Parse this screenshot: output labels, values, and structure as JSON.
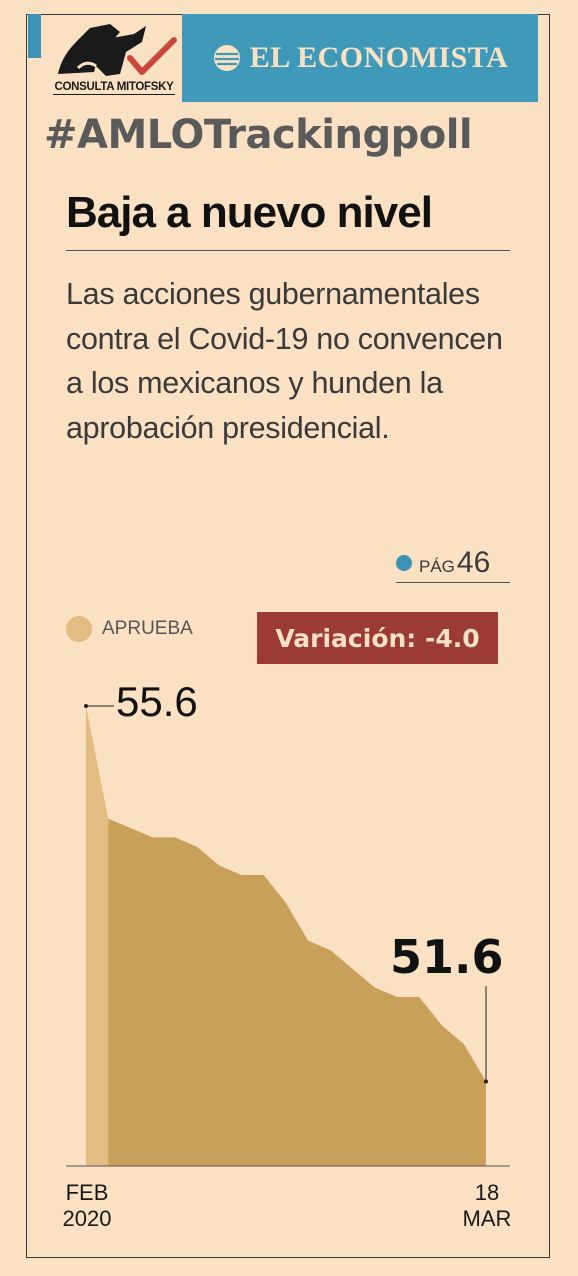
{
  "brand": {
    "mitofsky": "CONSULTA MITOFSKY",
    "economista": "EL ECONOMISTA"
  },
  "hashtag": "#AMLOTrackingpoll",
  "headline": "Baja a nuevo nivel",
  "dek": "Las acciones gubernamentales contra el Covid-19 no convencen a los mexicanos y hunden la aprobación presidencial.",
  "page_ref": {
    "label": "PÁG",
    "number": "46"
  },
  "variation_label": "Variación: -4.0",
  "colors": {
    "background": "#fbe1c3",
    "accent_blue": "#3d93b7",
    "area_light": "#e2bc82",
    "area_dark": "#c9a05a",
    "variation_bg": "#9b3a36"
  },
  "chart_data": {
    "type": "area",
    "series": [
      {
        "name": "APRUEBA",
        "values": [
          55.6,
          54.4,
          54.3,
          54.2,
          54.2,
          54.1,
          53.9,
          53.8,
          53.8,
          53.5,
          53.1,
          53.0,
          52.8,
          52.6,
          52.5,
          52.5,
          52.2,
          52.0,
          51.6
        ]
      }
    ],
    "start_label": "55.6",
    "end_label": "51.6",
    "x_tick_start": [
      "FEB",
      "2020"
    ],
    "x_tick_end": [
      "18",
      "MAR"
    ],
    "ylim": [
      50.7,
      55.6
    ]
  }
}
